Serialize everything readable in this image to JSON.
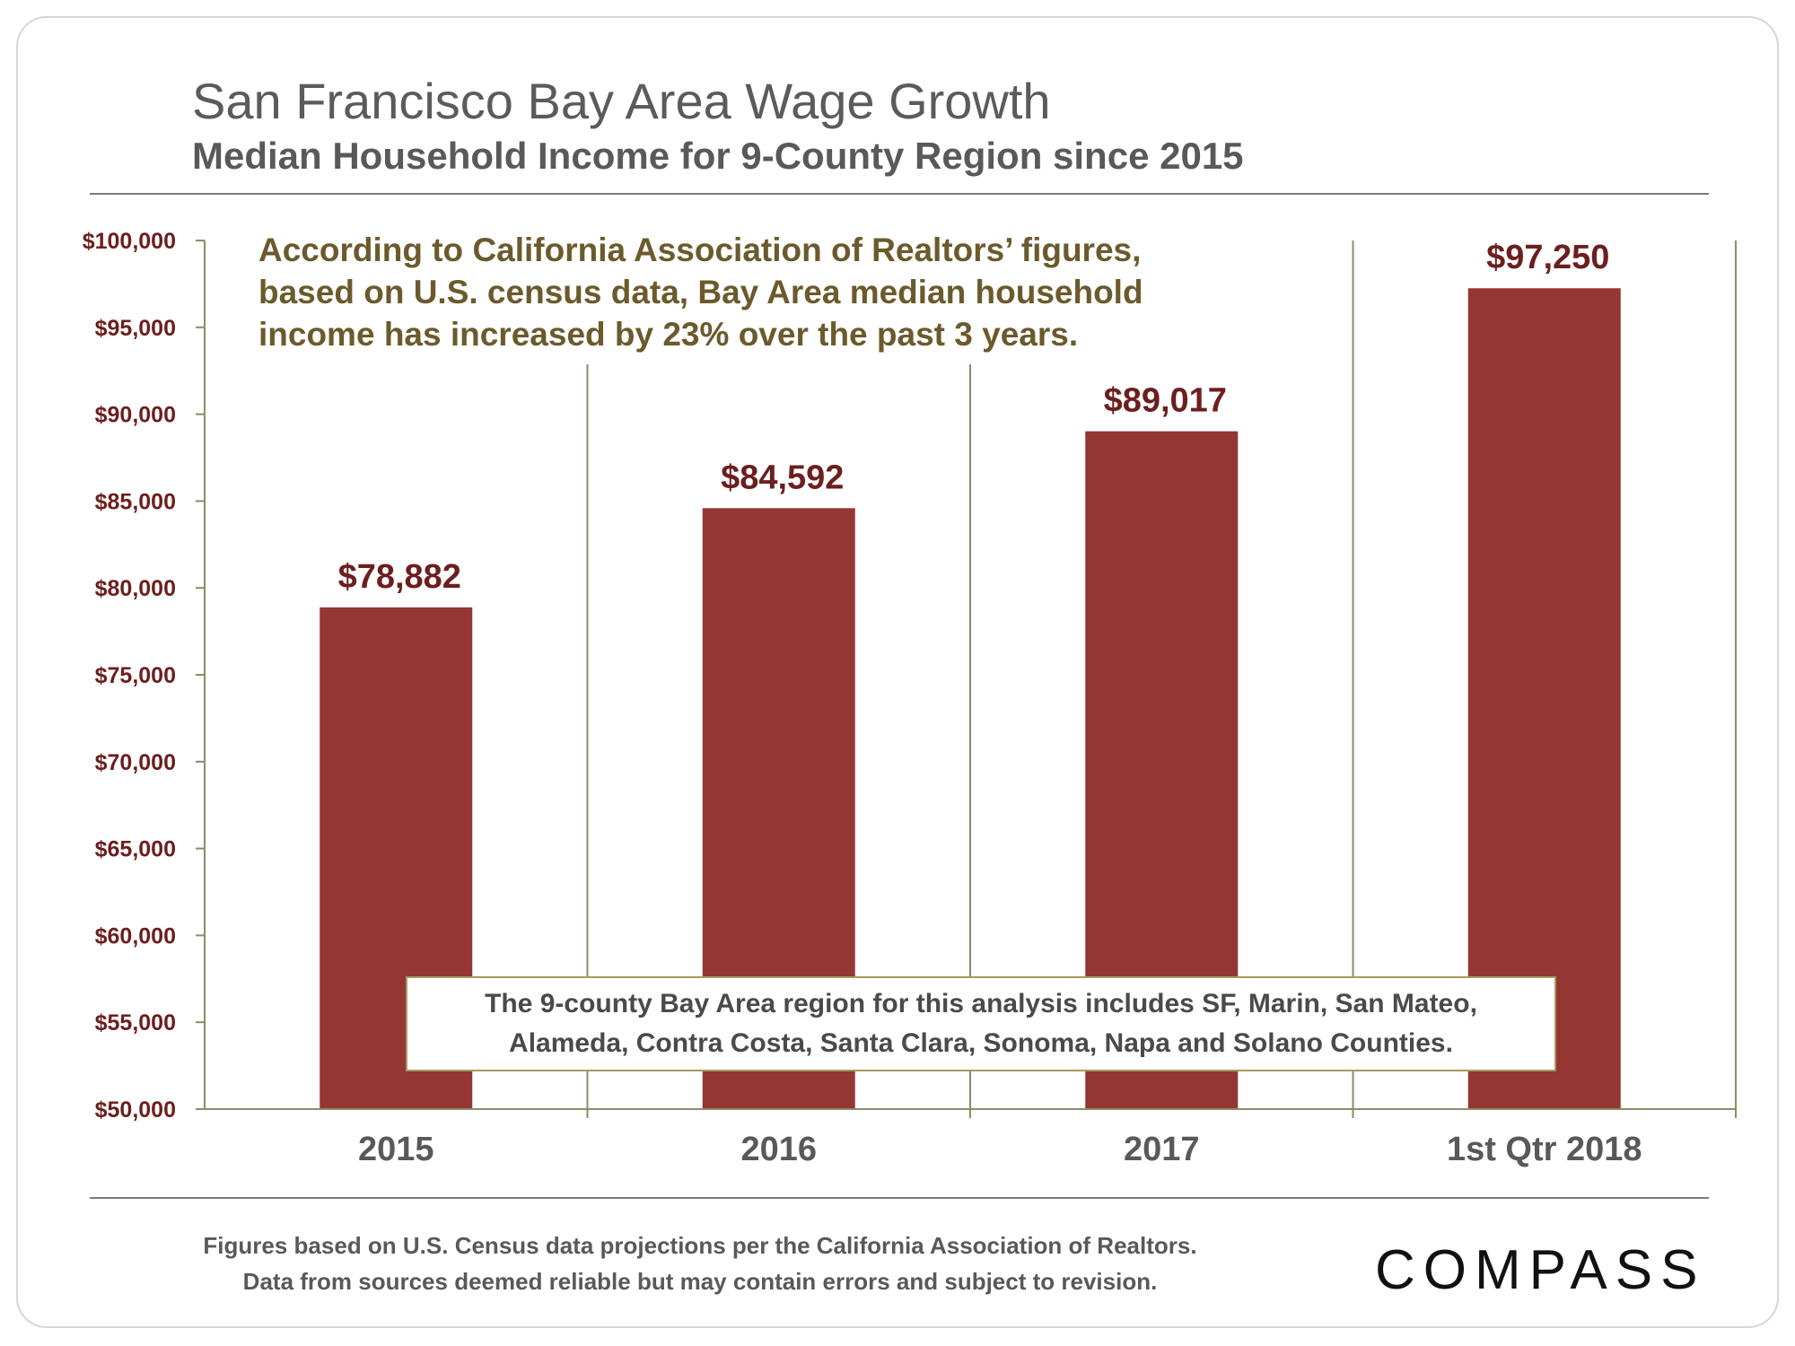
{
  "header": {
    "title": "San Francisco Bay Area Wage Growth",
    "subtitle": "Median Household Income for 9-County Region since 2015"
  },
  "annotation": {
    "lines": [
      "According to California Association of Realtors’ figures,",
      "based on U.S. census data, Bay Area median household",
      "income has increased by 23% over the past 3 years."
    ]
  },
  "note": {
    "line1": "The 9-county Bay Area region for this analysis includes SF, Marin, San Mateo,",
    "line2": "Alameda, Contra Costa, Santa Clara, Sonoma, Napa and Solano Counties."
  },
  "footer": {
    "line1": "Figures based on U.S. Census data projections per the California Association of Realtors.",
    "line2": "Data from sources deemed reliable but may contain errors and subject to revision."
  },
  "logo": {
    "text": "COMPASS"
  },
  "colors": {
    "bar": "#943634",
    "value_label": "#6b1f1e",
    "y_tick": "#6b1f1e",
    "x_tick": "#595959",
    "axis": "#8c8c6a",
    "annotation": "#6b5a2c"
  },
  "chart_data": {
    "type": "bar",
    "title": "San Francisco Bay Area Wage Growth",
    "subtitle": "Median Household Income for 9-County Region since 2015",
    "categories": [
      "2015",
      "2016",
      "2017",
      "1st Qtr 2018"
    ],
    "values": [
      78882,
      84592,
      89017,
      97250
    ],
    "value_labels": [
      "$78,882",
      "$84,592",
      "$89,017",
      "$97,250"
    ],
    "xlabel": "",
    "ylabel": "",
    "ylim": [
      50000,
      100000
    ],
    "y_ticks": [
      50000,
      55000,
      60000,
      65000,
      70000,
      75000,
      80000,
      85000,
      90000,
      95000,
      100000
    ],
    "y_tick_labels": [
      "$50,000",
      "$55,000",
      "$60,000",
      "$65,000",
      "$70,000",
      "$75,000",
      "$80,000",
      "$85,000",
      "$90,000",
      "$95,000",
      "$100,000"
    ],
    "grid": false,
    "legend": "none"
  }
}
